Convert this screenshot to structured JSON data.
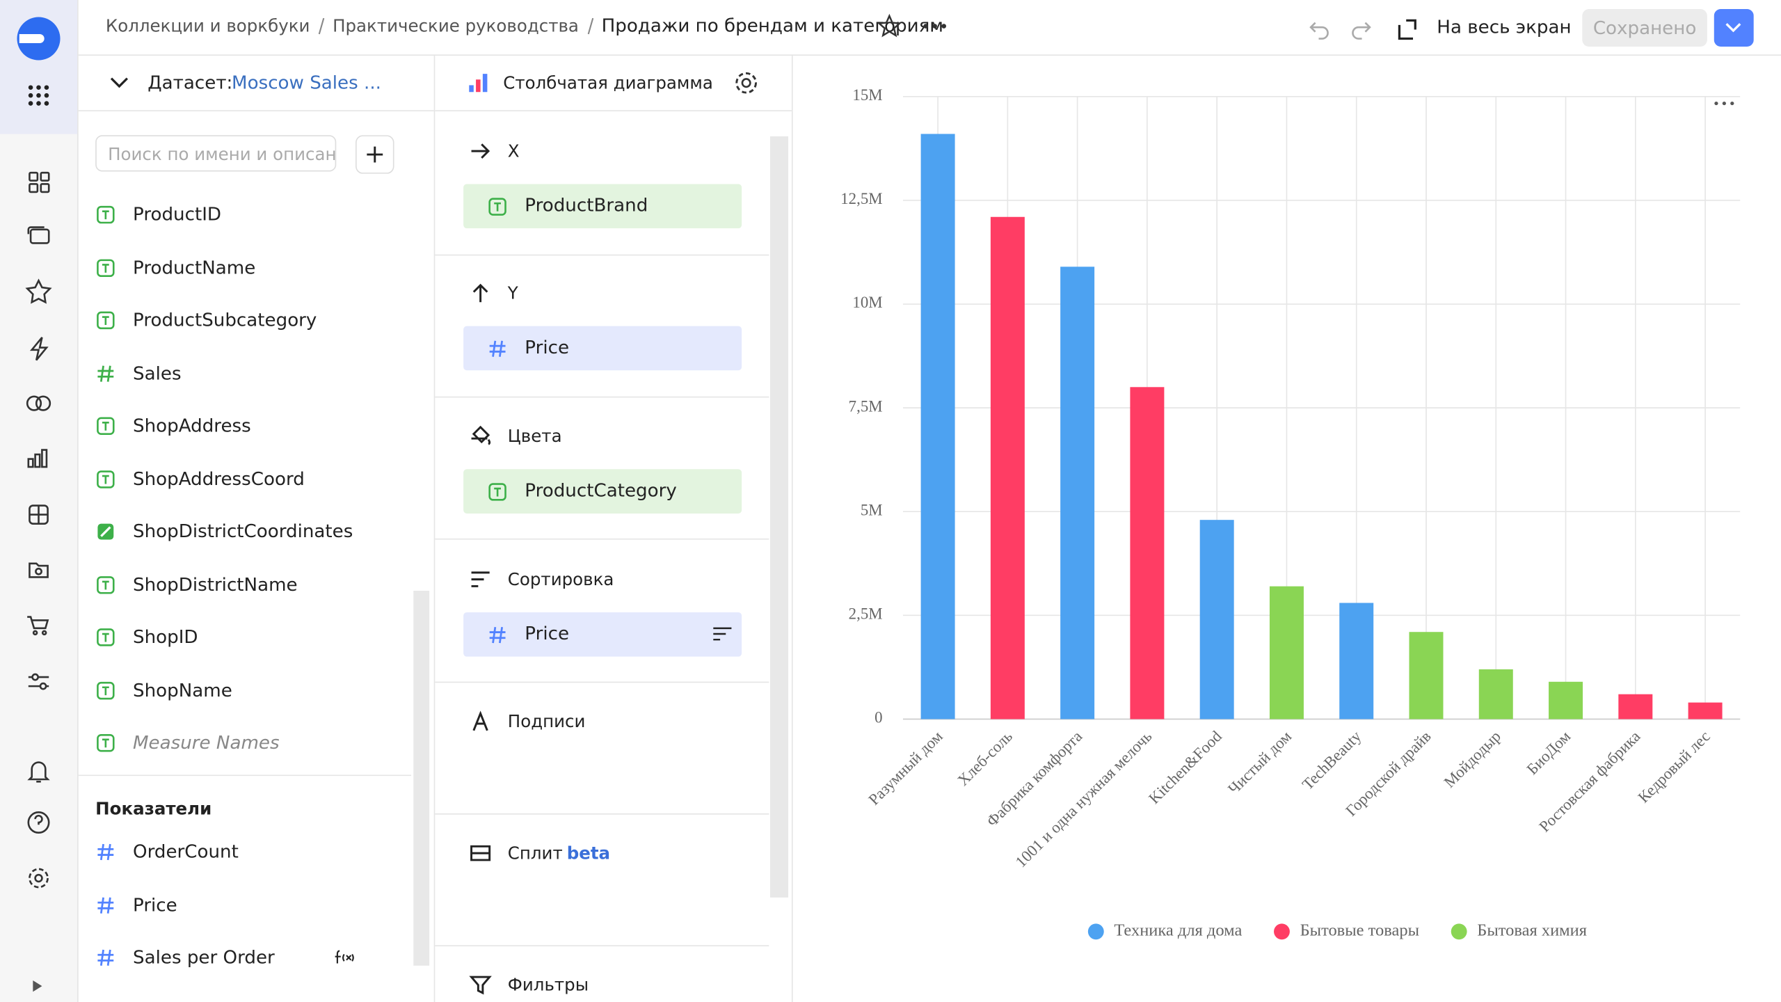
{
  "header": {
    "breadcrumbs": [
      "Коллекции и воркбуки",
      "Практические руководства"
    ],
    "title": "Продажи по брендам и категориям",
    "fullscreen": "На весь экран",
    "save": "Сохранено"
  },
  "dataset": {
    "label": "Датасет:",
    "name": "Moscow Sales ...",
    "search_placeholder": "Поиск по имени и описанию",
    "dimensions": [
      {
        "name": "ProductID",
        "kind": "text"
      },
      {
        "name": "ProductName",
        "kind": "text"
      },
      {
        "name": "ProductSubcategory",
        "kind": "text"
      },
      {
        "name": "Sales",
        "kind": "number"
      },
      {
        "name": "ShopAddress",
        "kind": "text"
      },
      {
        "name": "ShopAddressCoord",
        "kind": "text"
      },
      {
        "name": "ShopDistrictCoordinates",
        "kind": "geo"
      },
      {
        "name": "ShopDistrictName",
        "kind": "text"
      },
      {
        "name": "ShopID",
        "kind": "text"
      },
      {
        "name": "ShopName",
        "kind": "text"
      },
      {
        "name": "Measure Names",
        "kind": "pseudo"
      }
    ],
    "measures_title": "Показатели",
    "measures": [
      {
        "name": "OrderCount",
        "kind": "measure"
      },
      {
        "name": "Price",
        "kind": "measure"
      },
      {
        "name": "Sales per Order",
        "kind": "formula"
      }
    ]
  },
  "visualization": {
    "type_label": "Столбчатая диаграмма",
    "sections": [
      {
        "title": "X",
        "icon": "arrow-right",
        "field": "ProductBrand",
        "kind": "text"
      },
      {
        "title": "Y",
        "icon": "arrow-up",
        "field": "Price",
        "kind": "measure"
      },
      {
        "title": "Цвета",
        "icon": "bucket",
        "field": "ProductCategory",
        "kind": "text"
      },
      {
        "title": "Сортировка",
        "icon": "sort",
        "field": "Price",
        "kind": "measure"
      },
      {
        "title": "Подписи",
        "icon": "letter"
      },
      {
        "title": "Сплит",
        "icon": "split",
        "badge": "beta"
      },
      {
        "title": "Фильтры",
        "icon": "filter"
      }
    ]
  },
  "chart_data": {
    "type": "bar",
    "categories": [
      "Разумный дом",
      "Хлеб-соль",
      "Фабрика комфорта",
      "1001 и одна нужная мелочь",
      "Kitchen&Food",
      "Чистый дом",
      "TechBeauty",
      "Городской драйв",
      "Мойдодыр",
      "БиоДом",
      "Ростовская фабрика",
      "Кедровый лес"
    ],
    "series": [
      {
        "name": "Техника для дома",
        "color": "#4da2f1",
        "values": [
          14100000,
          null,
          10900000,
          null,
          4800000,
          null,
          2800000,
          null,
          null,
          null,
          null,
          null
        ]
      },
      {
        "name": "Бытовые товары",
        "color": "#ff3d64",
        "values": [
          null,
          12100000,
          null,
          8000000,
          null,
          null,
          null,
          null,
          null,
          null,
          600000,
          400000
        ]
      },
      {
        "name": "Бытовая химия",
        "color": "#8ad554",
        "values": [
          null,
          null,
          null,
          null,
          null,
          3200000,
          null,
          2100000,
          1200000,
          900000,
          null,
          null
        ]
      }
    ],
    "ylim": [
      0,
      15000000
    ],
    "yticks": [
      0,
      {
        "value": 2500000,
        "label": "2,5M"
      },
      {
        "value": 5000000,
        "label": "5M"
      },
      {
        "value": 7500000,
        "label": "7,5M"
      },
      {
        "value": 10000000,
        "label": "10M"
      },
      {
        "value": 12500000,
        "label": "12,5M"
      },
      {
        "value": 15000000,
        "label": "15M"
      }
    ],
    "grid": true,
    "legend": "bottom"
  }
}
